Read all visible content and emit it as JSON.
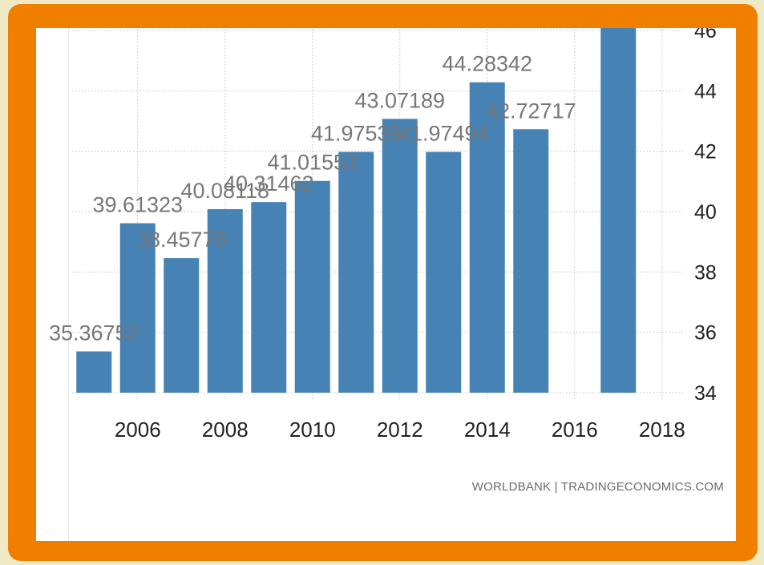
{
  "chart_data": {
    "type": "bar",
    "title": "",
    "xlabel": "",
    "ylabel": "",
    "ylim": [
      34,
      46
    ],
    "xlim": [
      2004.5,
      2018.5
    ],
    "x_ticks": [
      2006,
      2008,
      2010,
      2012,
      2014,
      2016,
      2018
    ],
    "y_ticks": [
      34,
      36,
      38,
      40,
      42,
      44,
      46
    ],
    "grid": true,
    "color": "#4682b4",
    "series": [
      {
        "x": [
          2005,
          2006,
          2007,
          2008,
          2009,
          2010,
          2011,
          2012,
          2013,
          2014,
          2015,
          2017
        ],
        "values": [
          35.36752,
          39.61323,
          38.45776,
          40.08118,
          40.31462,
          41.01553,
          41.97539,
          43.07189,
          41.97494,
          44.28342,
          42.72717,
          46.5
        ],
        "labels": [
          "35.36752",
          "39.61323",
          "38.45776",
          "40.08118",
          "40.31462",
          "41.01553",
          "41.97539",
          "43.07189",
          "41.97494",
          "44.28342",
          "42.72717",
          ""
        ]
      }
    ]
  },
  "source": "WORLDBANK | TRADINGECONOMICS.COM"
}
